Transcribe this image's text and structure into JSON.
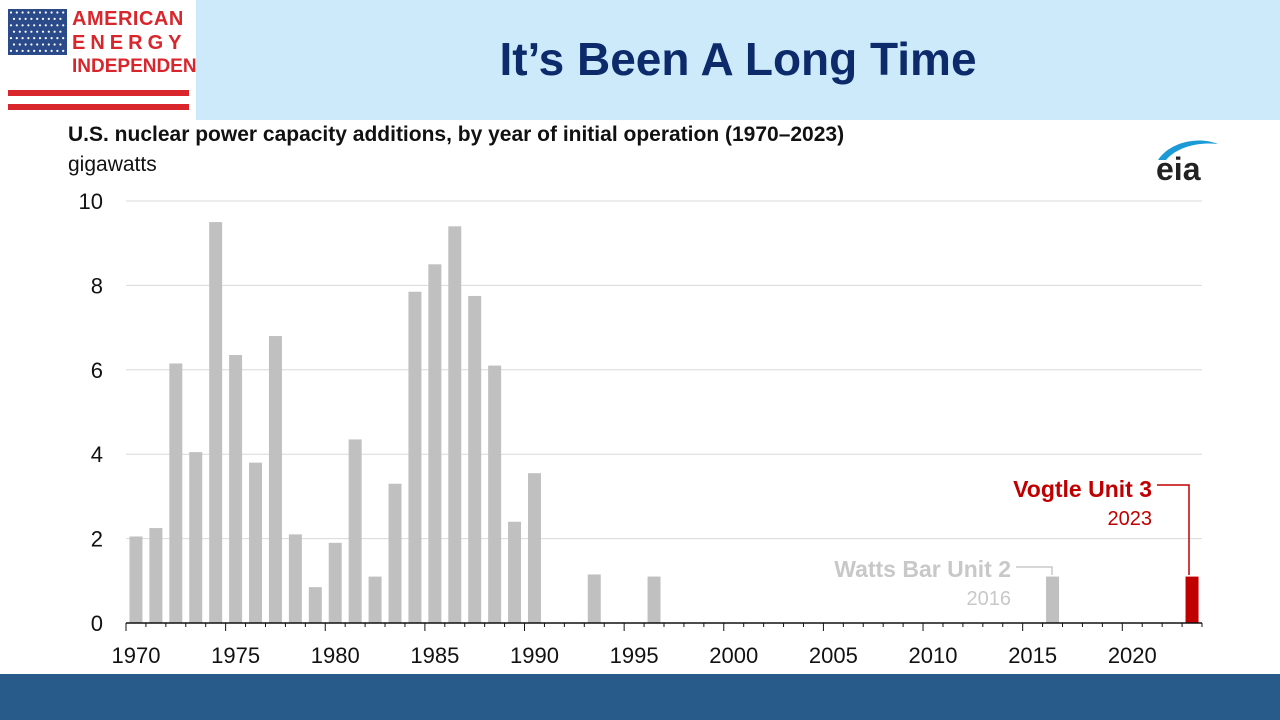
{
  "logo": {
    "line1": "AMERICAN",
    "line2": "ENERGY",
    "line3": "INDEPENDENCE",
    "color": "#d9262c",
    "flag_blue": "#2b4a8a",
    "icon": "us-flag-icon"
  },
  "header": {
    "title": "It’s Been A Long Time",
    "band_color": "#cdeafb",
    "title_color": "#0d2a6b"
  },
  "chart": {
    "title": "U.S. nuclear power capacity additions, by year of initial operation (1970–2023)",
    "unit": "gigawatts",
    "source_logo": "eia"
  },
  "annotations": {
    "watts_bar_name": "Watts Bar Unit 2",
    "watts_bar_year": "2016",
    "vogtle_name": "Vogtle Unit 3",
    "vogtle_year": "2023"
  },
  "colors": {
    "bar": "#c0c0c0",
    "highlight": "#c00000",
    "watts_label": "#c8c8c8",
    "grid": "#d9d9d9",
    "footer": "#285a8a"
  },
  "chart_data": {
    "type": "bar",
    "title": "U.S. nuclear power capacity additions, by year of initial operation (1970–2023)",
    "xlabel": "",
    "ylabel": "gigawatts",
    "ylim": [
      0,
      10
    ],
    "yticks": [
      0,
      2,
      4,
      6,
      8,
      10
    ],
    "xlim": [
      1970,
      2024
    ],
    "xticks": [
      1970,
      1975,
      1980,
      1985,
      1990,
      1995,
      2000,
      2005,
      2010,
      2015,
      2020
    ],
    "grid": true,
    "legend": "none",
    "categories": [
      1970,
      1971,
      1972,
      1973,
      1974,
      1975,
      1976,
      1977,
      1978,
      1979,
      1980,
      1981,
      1982,
      1983,
      1984,
      1985,
      1986,
      1987,
      1988,
      1989,
      1990,
      1993,
      1996,
      2016,
      2023
    ],
    "values": [
      2.05,
      2.25,
      6.15,
      4.05,
      9.5,
      6.35,
      3.8,
      6.8,
      2.1,
      0.85,
      1.9,
      4.35,
      1.1,
      3.3,
      7.85,
      8.5,
      9.4,
      7.75,
      6.1,
      2.4,
      3.55,
      1.15,
      1.1,
      1.1,
      1.1
    ],
    "highlight": [
      2023
    ]
  }
}
